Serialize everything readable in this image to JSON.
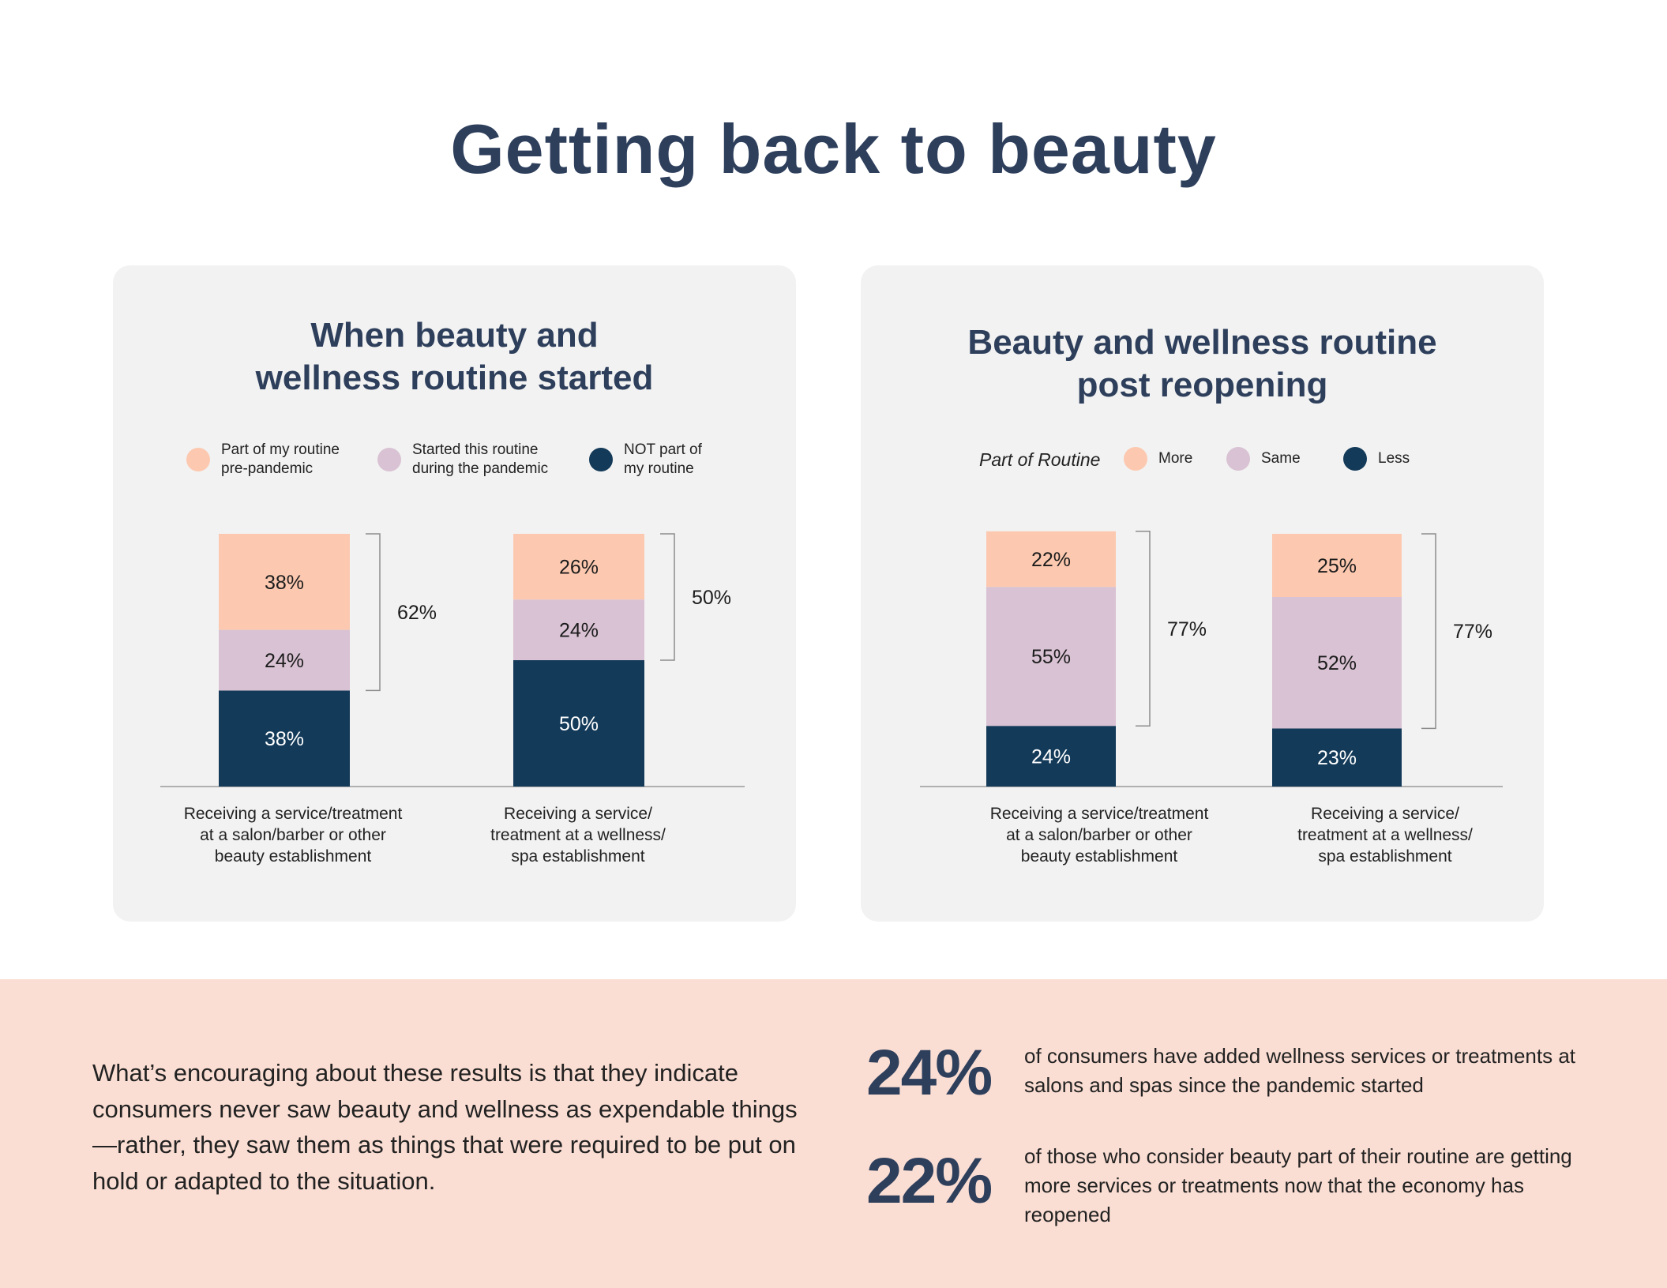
{
  "page_title": "Getting back to beauty",
  "colors": {
    "pre_pandemic": "#fcc9b0",
    "during_pandemic": "#d9c2d3",
    "not_routine": "#133a59",
    "more": "#fcc9b0",
    "same": "#d9c2d3",
    "less": "#133a59",
    "title": "#2e3f5c",
    "band": "#fbded3"
  },
  "left_panel": {
    "title_line1": "When beauty and",
    "title_line2": "wellness routine started",
    "legend": [
      {
        "label": "Part of my routine\npre-pandemic",
        "color_key": "pre_pandemic"
      },
      {
        "label": "Started this routine\nduring the pandemic",
        "color_key": "during_pandemic"
      },
      {
        "label": "NOT part of\nmy routine",
        "color_key": "not_routine"
      }
    ]
  },
  "right_panel": {
    "title_line1": "Beauty and wellness routine",
    "title_line2": "post reopening",
    "legend_heading": "Part of Routine",
    "legend": [
      {
        "label": "More",
        "color_key": "more"
      },
      {
        "label": "Same",
        "color_key": "same"
      },
      {
        "label": "Less",
        "color_key": "less"
      }
    ]
  },
  "chart_data": [
    {
      "type": "bar",
      "stacked": true,
      "title": "When beauty and wellness routine started",
      "categories": [
        "Receiving a service/treatment\nat a salon/barber or other\nbeauty establishment",
        "Receiving a service/\ntreatment at a wellness/\nspa establishment"
      ],
      "series": [
        {
          "name": "NOT part of my routine",
          "color_key": "not_routine",
          "values": [
            38,
            50
          ],
          "labels": [
            "38%",
            "50%"
          ]
        },
        {
          "name": "Started this routine during the pandemic",
          "color_key": "during_pandemic",
          "values": [
            24,
            24
          ],
          "labels": [
            "24%",
            "24%"
          ]
        },
        {
          "name": "Part of my routine pre-pandemic",
          "color_key": "pre_pandemic",
          "values": [
            38,
            26
          ],
          "labels": [
            "38%",
            "26%"
          ]
        }
      ],
      "bracket_totals": [
        "62%",
        "50%"
      ],
      "ylim": [
        0,
        100
      ]
    },
    {
      "type": "bar",
      "stacked": true,
      "title": "Beauty and wellness routine post reopening",
      "categories": [
        "Receiving a service/treatment\nat a salon/barber or other\nbeauty establishment",
        "Receiving a service/\ntreatment at a wellness/\nspa establishment"
      ],
      "series": [
        {
          "name": "Less",
          "color_key": "less",
          "values": [
            24,
            23
          ],
          "labels": [
            "24%",
            "23%"
          ]
        },
        {
          "name": "Same",
          "color_key": "same",
          "values": [
            55,
            52
          ],
          "labels": [
            "55%",
            "52%"
          ]
        },
        {
          "name": "More",
          "color_key": "more",
          "values": [
            22,
            25
          ],
          "labels": [
            "22%",
            "25%"
          ]
        }
      ],
      "bracket_totals": [
        "77%",
        "77%"
      ],
      "ylim": [
        0,
        100
      ]
    }
  ],
  "bottom": {
    "quote": "What’s encouraging about these results is that they indicate consumers never saw beauty and wellness as expendable things—rather, they saw them as things that were required to be put on hold or adapted to the situation.",
    "stats": [
      {
        "value": "24%",
        "text": "of consumers have added wellness services or treatments at salons and spas since the pandemic started"
      },
      {
        "value": "22%",
        "text": "of those who consider beauty part of their routine are getting more services or treatments now that the economy has reopened"
      }
    ]
  }
}
